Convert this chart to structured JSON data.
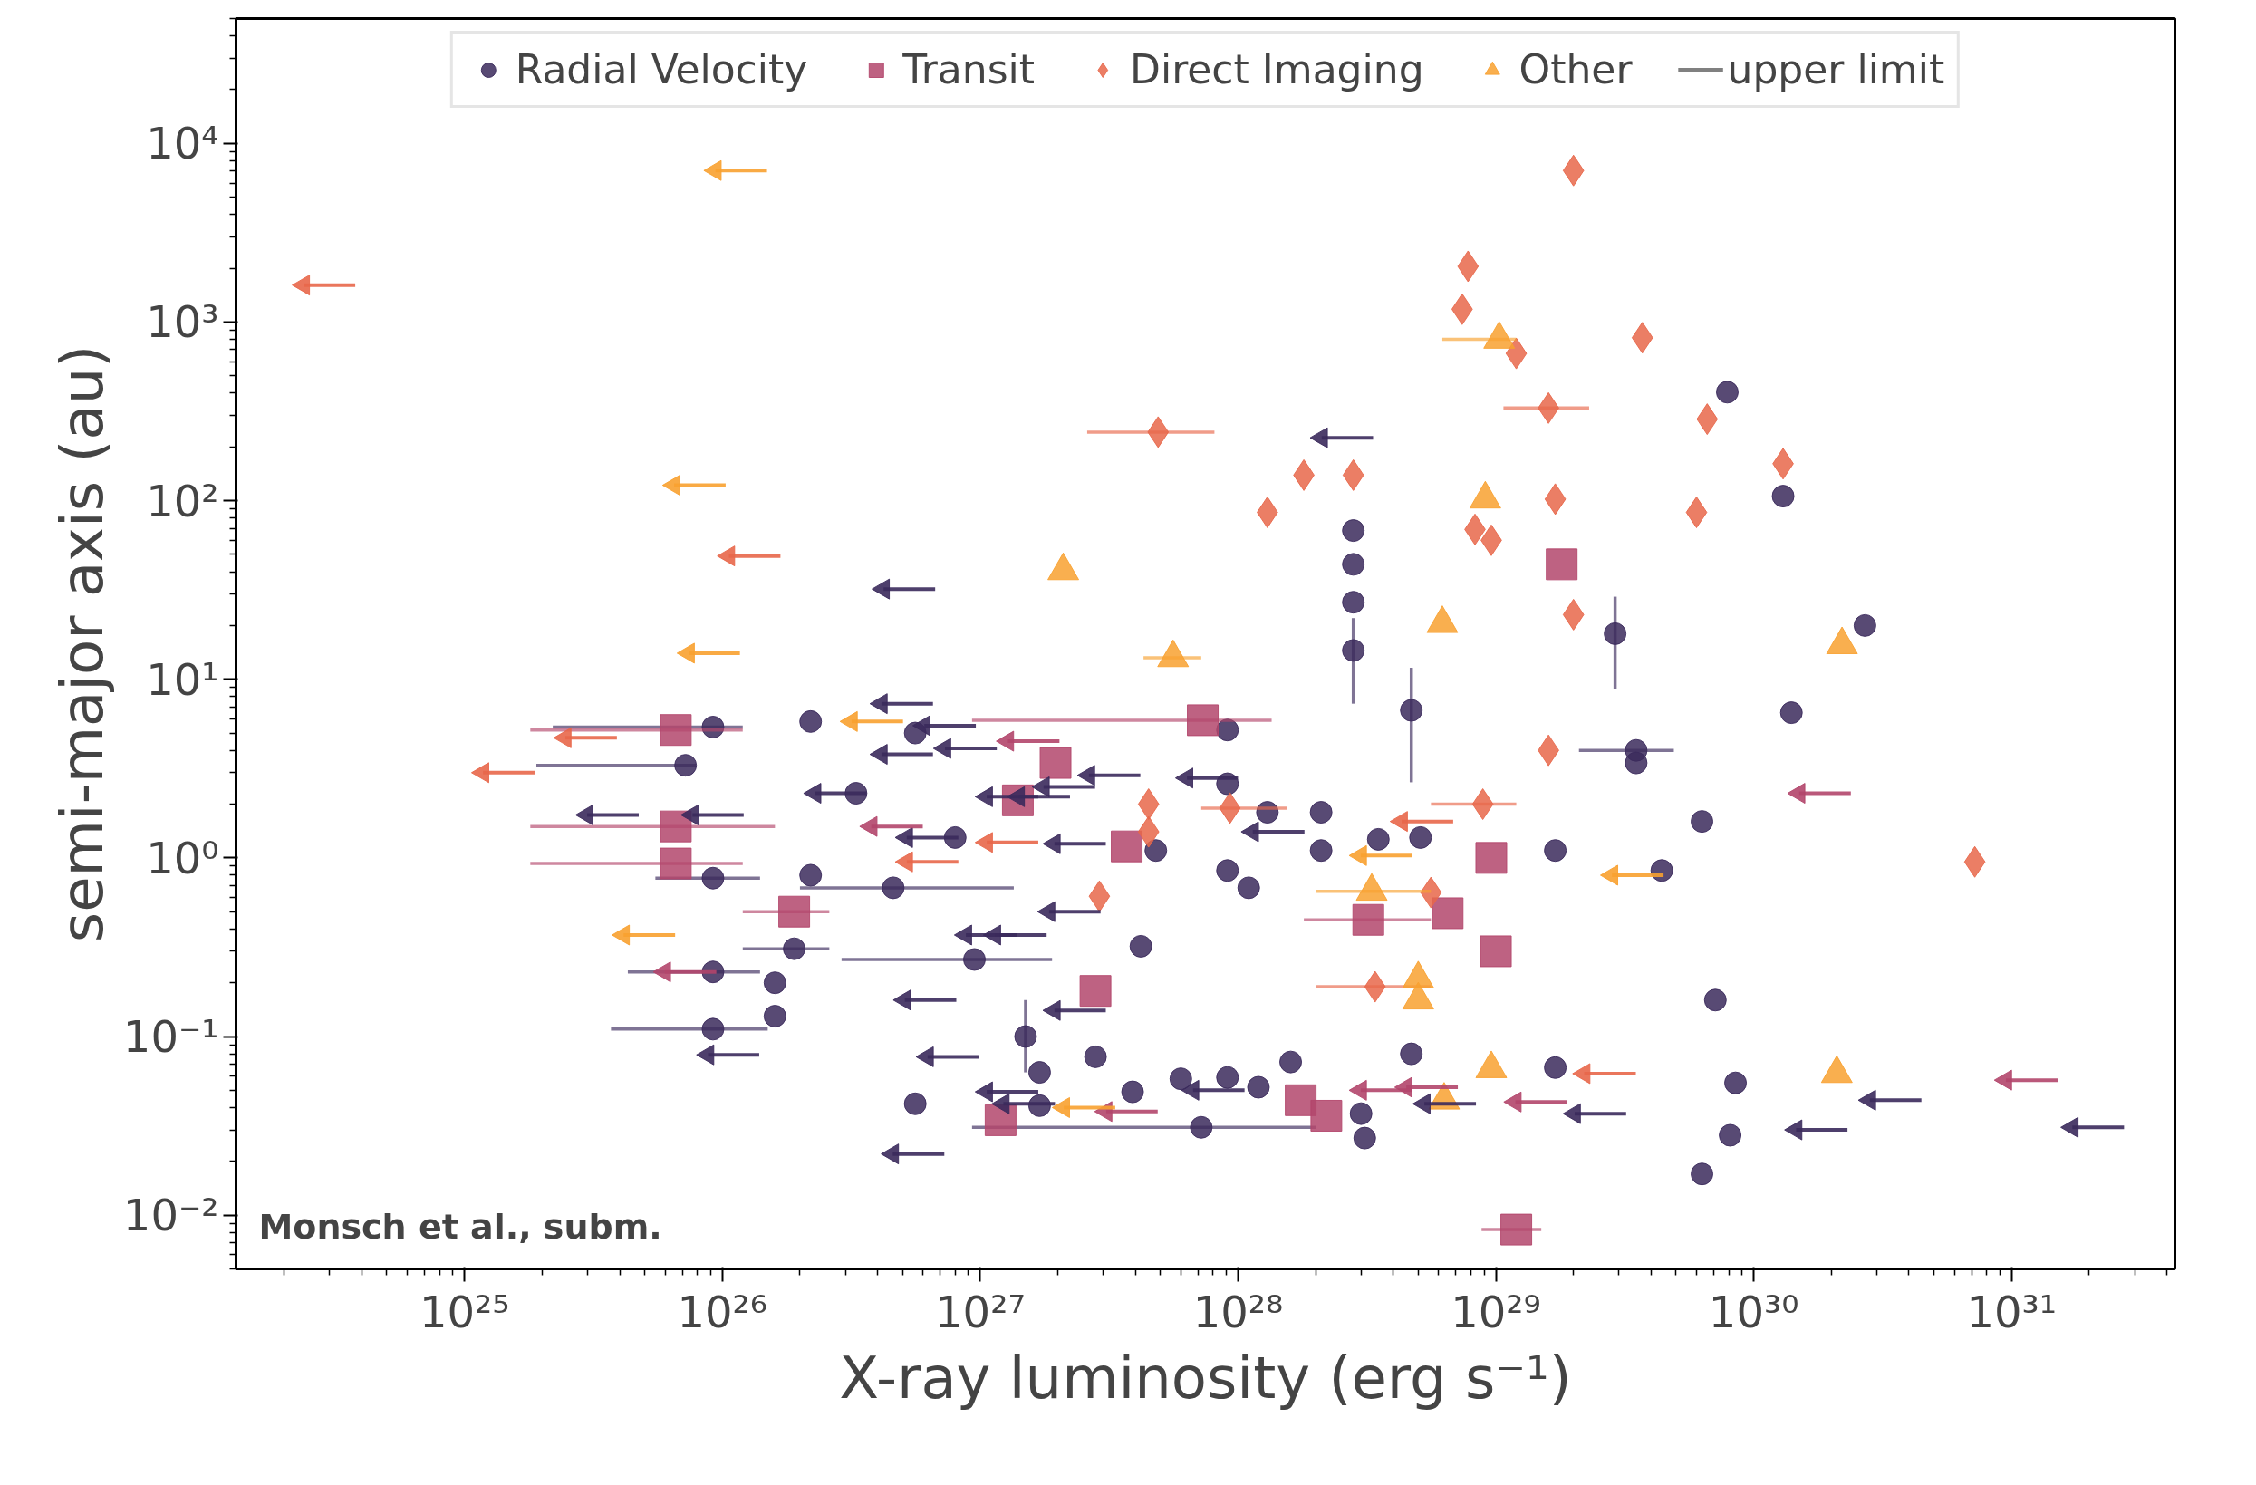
{
  "chart_data": {
    "type": "scatter",
    "xlabel": "X-ray luminosity (erg s⁻¹)",
    "ylabel": "semi-major axis (au)",
    "log": "xy",
    "grid": false,
    "legend": "top",
    "xlim": [
      1.3e+24,
      4.3e+31
    ],
    "ylim": [
      0.005,
      50000
    ],
    "xticks": [
      {
        "value": 1e+25,
        "label": "10²⁵"
      },
      {
        "value": 1e+26,
        "label": "10²⁶"
      },
      {
        "value": 1e+27,
        "label": "10²⁷"
      },
      {
        "value": 1e+28,
        "label": "10²⁸"
      },
      {
        "value": 1e+29,
        "label": "10²⁹"
      },
      {
        "value": 1e+30,
        "label": "10³⁰"
      },
      {
        "value": 1e+31,
        "label": "10³¹"
      }
    ],
    "yticks": [
      {
        "value": 0.01,
        "label": "10⁻²"
      },
      {
        "value": 0.1,
        "label": "10⁻¹"
      },
      {
        "value": 1,
        "label": "10⁰"
      },
      {
        "value": 10,
        "label": "10¹"
      },
      {
        "value": 100,
        "label": "10²"
      },
      {
        "value": 1000,
        "label": "10³"
      },
      {
        "value": 10000,
        "label": "10⁴"
      }
    ],
    "annotations": [
      "Monsch et al., subm."
    ],
    "series": [
      {
        "name": "Radial Velocity",
        "color": "#3b2a5c",
        "marker": "circle",
        "x": [
          9.2e+25,
          7.2e+25,
          9.2e+25,
          9.2e+25,
          9.2e+25,
          2.2e+26,
          2.2e+26,
          1.9e+26,
          1.6e+26,
          1.6e+26,
          3.3e+26,
          4.6e+26,
          5.6e+26,
          8e+26,
          9.5e+26,
          1.5e+27,
          1.7e+27,
          1.7e+27,
          5.6e+26,
          2.8e+27,
          3.9e+27,
          4.2e+27,
          4.8e+27,
          6e+27,
          7.2e+27,
          9.1e+27,
          9.1e+27,
          9.1e+27,
          9.1e+27,
          1.1e+28,
          1.2e+28,
          1.3e+28,
          1.6e+28,
          2.1e+28,
          2.1e+28,
          2.8e+28,
          2.8e+28,
          2.8e+28,
          2.8e+28,
          3e+28,
          3.1e+28,
          3.5e+28,
          4.7e+28,
          5.1e+28,
          4.7e+28,
          1.7e+29,
          1.7e+29,
          2.9e+29,
          3.5e+29,
          3.5e+29,
          4.4e+29,
          6.3e+29,
          6.3e+29,
          7.1e+29,
          8.1e+29,
          8.5e+29,
          7.9e+29,
          1.3e+30,
          1.4e+30,
          2.7e+30
        ],
        "values": [
          5.4,
          3.3,
          0.77,
          0.23,
          0.11,
          5.8,
          0.8,
          0.31,
          0.2,
          0.13,
          2.3,
          0.68,
          5.0,
          1.3,
          0.27,
          0.1,
          0.063,
          0.041,
          0.042,
          0.077,
          0.049,
          0.32,
          1.1,
          0.058,
          0.031,
          5.2,
          2.6,
          0.85,
          0.059,
          0.68,
          0.052,
          1.8,
          0.072,
          1.8,
          1.1,
          68,
          44,
          27,
          14.5,
          0.037,
          0.027,
          1.27,
          6.7,
          1.3,
          0.08,
          0.067,
          1.1,
          18,
          4.0,
          3.4,
          0.85,
          1.6,
          0.017,
          0.16,
          0.028,
          0.055,
          405,
          106,
          6.5,
          20
        ],
        "xerrors": [
          [
            2.2e+25,
            1.2e+26
          ],
          [
            1.9e+25,
            7.9e+25
          ],
          [
            5.5e+25,
            1.4e+26
          ],
          [
            4.3e+25,
            1.4e+26
          ],
          [
            3.7e+25,
            1.5e+26
          ],
          null,
          null,
          [
            1.2e+26,
            2.6e+26
          ],
          null,
          null,
          null,
          [
            2e+26,
            1.35e+27
          ],
          null,
          null,
          [
            2.9e+26,
            1.9e+27
          ],
          null,
          null,
          null,
          null,
          null,
          null,
          null,
          null,
          null,
          [
            9.3e+26,
            2e+28
          ],
          null,
          null,
          null,
          null,
          null,
          null,
          null,
          null,
          null,
          null,
          null,
          null,
          null,
          null,
          null,
          null,
          null,
          null,
          null,
          null,
          null,
          null,
          null,
          [
            2.1e+29,
            4.9e+29
          ],
          null,
          null,
          null,
          null,
          null,
          null,
          null,
          null,
          null,
          null,
          null
        ],
        "errors": [
          null,
          null,
          null,
          null,
          null,
          null,
          null,
          null,
          null,
          null,
          null,
          null,
          null,
          null,
          null,
          [
            0.063,
            0.16
          ],
          null,
          null,
          null,
          null,
          null,
          null,
          null,
          null,
          null,
          null,
          null,
          null,
          null,
          null,
          null,
          null,
          null,
          null,
          null,
          null,
          null,
          null,
          [
            7.3,
            22
          ],
          null,
          null,
          null,
          [
            2.65,
            11.6
          ],
          null,
          null,
          null,
          null,
          [
            8.8,
            29
          ],
          null,
          null,
          null,
          null,
          null,
          null,
          null,
          null,
          null,
          null,
          null,
          null
        ]
      },
      {
        "name": "Transit",
        "color": "#b3466c",
        "marker": "square",
        "x": [
          6.6e+25,
          6.6e+25,
          6.6e+25,
          1.9e+26,
          1.96e+27,
          1.4e+27,
          2.8e+27,
          3.7e+27,
          7.3e+27,
          1.2e+27,
          1.75e+28,
          2.2e+28,
          3.2e+28,
          6.5e+28,
          9.6e+28,
          1e+29,
          1.8e+29,
          1.2e+29
        ],
        "values": [
          5.2,
          1.5,
          0.93,
          0.5,
          3.4,
          2.1,
          0.18,
          1.16,
          5.9,
          0.034,
          0.044,
          0.036,
          0.45,
          0.49,
          1.0,
          0.3,
          44,
          0.0083
        ],
        "xerrors": [
          [
            1.8e+25,
            1.2e+26
          ],
          [
            1.8e+25,
            1.6e+26
          ],
          [
            1.8e+25,
            1.2e+26
          ],
          [
            1.2e+26,
            2.6e+26
          ],
          null,
          null,
          null,
          null,
          [
            9.3e+26,
            1.35e+28
          ],
          null,
          null,
          null,
          [
            1.8e+28,
            5.6e+28
          ],
          null,
          null,
          null,
          null,
          [
            8.8e+28,
            1.5e+29
          ]
        ]
      },
      {
        "name": "Direct Imaging",
        "color": "#e8674a",
        "marker": "diamond",
        "x": [
          4.9e+27,
          4.5e+27,
          4.5e+27,
          2.9e+27,
          9.3e+27,
          1.3e+28,
          1.8e+28,
          2.8e+28,
          3.4e+28,
          5.6e+28,
          7.8e+28,
          7.4e+28,
          8.3e+28,
          9.6e+28,
          1.2e+29,
          8.9e+28,
          1.6e+29,
          1.7e+29,
          2e+29,
          1.6e+29,
          2e+29,
          3.7e+29,
          6.6e+29,
          6e+29,
          1.3e+30,
          7.2e+30
        ],
        "values": [
          242,
          2.0,
          1.4,
          0.61,
          1.9,
          86,
          139,
          139,
          0.19,
          0.64,
          2050,
          1180,
          69,
          60,
          667,
          2.0,
          330,
          102,
          23,
          4.0,
          7050,
          817,
          286,
          86,
          161,
          0.95
        ],
        "xerrors": [
          [
            2.6e+27,
            8.1e+27
          ],
          null,
          null,
          null,
          [
            7.2e+27,
            1.55e+28
          ],
          null,
          null,
          null,
          [
            2e+28,
            5.6e+28
          ],
          null,
          null,
          null,
          null,
          null,
          null,
          [
            5.6e+28,
            1.2e+29
          ],
          [
            1.07e+29,
            2.3e+29
          ],
          null,
          null,
          null,
          null,
          null,
          null,
          null,
          null,
          null
        ]
      },
      {
        "name": "Other",
        "color": "#f8a130",
        "marker": "triangle",
        "x": [
          2.1e+27,
          5.6e+27,
          6.2e+28,
          9.1e+28,
          1.03e+29,
          2.2e+30,
          2.1e+30,
          9.6e+28,
          3.3e+28,
          5e+28,
          5e+28,
          6.3e+28
        ],
        "values": [
          40.5,
          13.2,
          20.5,
          102,
          800,
          15.6,
          0.062,
          0.066,
          0.65,
          0.21,
          0.16,
          0.044
        ],
        "xerrors": [
          null,
          [
            4.3e+27,
            7.2e+27
          ],
          null,
          null,
          [
            6.2e+28,
            1.2e+29
          ],
          null,
          null,
          null,
          [
            2e+28,
            5.6e+28
          ],
          null,
          null,
          null
        ]
      },
      {
        "color": "#3b2a5c",
        "marker": "triangle",
        "xerrors": [
          [
            2.99e+25,
            4.74e+25
          ],
          [
            7.66e+25,
            1.21e+26
          ],
          [
            4.22e+26,
            6.69e+26
          ],
          [
            4.14e+26,
            6.56e+26
          ],
          [
            6.07e+26,
            9.62e+26
          ],
          [
            4.14e+26,
            6.56e+26
          ],
          [
            7.3e+26,
            1.16e+27
          ],
          [
            2.29e+26,
            3.63e+26
          ],
          [
            5.19e+26,
            8.23e+26
          ],
          [
            5.1e+26,
            8.08e+26
          ],
          [
            6.25e+26,
            9.91e+26
          ],
          [
            4.58e+26,
            7.26e+26
          ],
          [
            8.8e+25,
            1.39e+26
          ],
          [
            1.06e+27,
            1.68e+27
          ],
          [
            1.41e+27,
            2.23e+27
          ],
          [
            1.76e+27,
            2.79e+27
          ],
          [
            2.64e+27,
            4.18e+27
          ],
          [
            1.94e+27,
            3.07e+27
          ],
          [
            1.85e+27,
            2.93e+27
          ],
          [
            1.94e+27,
            3.07e+27
          ],
          [
            8.8e+26,
            1.39e+27
          ],
          [
            1.14e+27,
            1.81e+27
          ],
          [
            1.06e+27,
            1.68e+27
          ],
          [
            1.23e+27,
            1.95e+27
          ],
          [
            6.34e+27,
            1e+28
          ],
          [
            1.14e+28,
            1.81e+28
          ],
          [
            2.11e+28,
            3.34e+28
          ],
          [
            6.69e+27,
            1.06e+28
          ],
          [
            5.28e+28,
            8.37e+28
          ],
          [
            2.02e+29,
            3.2e+29
          ],
          [
            1.46e+30,
            2.31e+30
          ],
          [
            2.82e+30,
            4.47e+30
          ],
          [
            1.72e+31,
            2.73e+31
          ]
        ],
        "x": [
          2.99e+25,
          7.66e+25,
          4.22e+26,
          4.14e+26,
          6.07e+26,
          4.14e+26,
          7.3e+26,
          2.29e+26,
          5.19e+26,
          5.1e+26,
          6.25e+26,
          4.58e+26,
          8.8e+25,
          1.06e+27,
          1.41e+27,
          1.76e+27,
          2.64e+27,
          1.94e+27,
          1.85e+27,
          1.94e+27,
          8.8e+26,
          1.14e+27,
          1.06e+27,
          1.23e+27,
          6.34e+27,
          1.14e+28,
          2.11e+28,
          6.69e+27,
          5.28e+28,
          2.02e+29,
          1.46e+30,
          2.82e+30,
          1.72e+31
        ],
        "values": [
          1.74,
          1.74,
          32,
          7.3,
          5.5,
          3.8,
          4.1,
          2.3,
          1.3,
          0.16,
          0.077,
          0.022,
          0.079,
          2.2,
          2.2,
          2.5,
          2.9,
          1.2,
          0.5,
          0.14,
          0.37,
          0.37,
          0.049,
          0.042,
          2.8,
          1.4,
          225,
          0.05,
          0.042,
          0.037,
          0.03,
          0.044,
          0.031
        ]
      },
      {
        "color": "#b3466c",
        "marker": "triangle",
        "xerrors": [
          [
            5.98e+25,
            9.48e+25
          ],
          [
            3.78e+26,
            5.99e+26
          ],
          [
            1.28e+27,
            2.03e+27
          ],
          [
            3.08e+27,
            4.88e+27
          ],
          [
            4.49e+28,
            7.12e+28
          ],
          [
            1.19e+29,
            1.89e+29
          ],
          [
            1.5e+30,
            2.38e+30
          ],
          [
            9.5e+30,
            1.51e+31
          ],
          [
            2.99e+28,
            4.74e+28
          ]
        ],
        "x": [
          5.98e+25,
          3.78e+26,
          1.28e+27,
          3.08e+27,
          4.49e+28,
          1.19e+29,
          1.5e+30,
          9.5e+30,
          2.99e+28
        ],
        "values": [
          0.23,
          1.5,
          4.5,
          0.038,
          0.052,
          0.043,
          2.3,
          0.057,
          0.05
        ]
      },
      {
        "color": "#e8674a",
        "marker": "triangle",
        "xerrors": [
          [
            2.38e+24,
            3.77e+24
          ],
          [
            1.18e+25,
            1.87e+25
          ],
          [
            2.46e+25,
            3.9e+25
          ],
          [
            1.06e+26,
            1.68e+26
          ],
          [
            5.19e+26,
            8.23e+26
          ],
          [
            1.06e+27,
            1.68e+27
          ],
          [
            4.31e+28,
            6.83e+28
          ],
          [
            2.2e+29,
            3.49e+29
          ]
        ],
        "x": [
          2.38e+24,
          1.18e+25,
          2.46e+25,
          1.06e+26,
          5.19e+26,
          1.06e+27,
          4.31e+28,
          2.2e+29
        ],
        "values": [
          1610,
          3.0,
          4.7,
          49,
          0.95,
          1.22,
          1.6,
          0.062
        ]
      },
      {
        "color": "#f8a130",
        "marker": "triangle",
        "xerrors": [
          [
            9.4e+25,
            1.49e+26
          ],
          [
            6.5e+25,
            1.03e+26
          ],
          [
            7.4e+25,
            1.17e+26
          ],
          [
            4.14e+25,
            6.56e+25
          ],
          [
            3.17e+26,
            5.02e+26
          ],
          [
            2.11e+27,
            3.34e+27
          ],
          [
            2.99e+28,
            4.74e+28
          ],
          [
            2.82e+29,
            4.47e+29
          ]
        ],
        "x": [
          9.4e+25,
          6.5e+25,
          7.4e+25,
          4.14e+25,
          3.17e+26,
          2.11e+27,
          2.99e+28,
          2.82e+29
        ],
        "values": [
          7050,
          122,
          14,
          0.37,
          5.8,
          0.04,
          1.03,
          0.8
        ]
      },
      {
        "name": "upper limit",
        "color": "#808080",
        "marker": "none"
      }
    ]
  }
}
